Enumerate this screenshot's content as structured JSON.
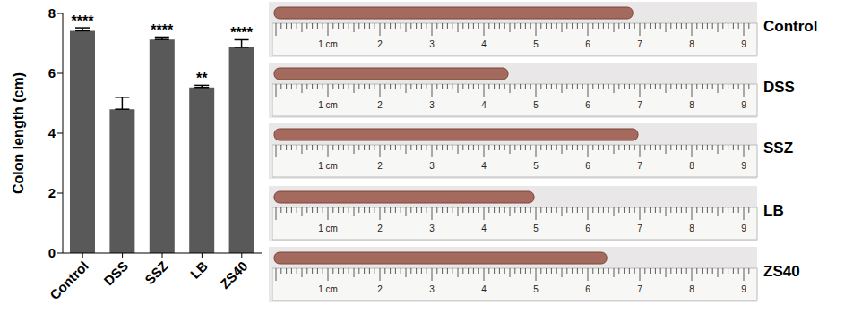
{
  "chart_data": {
    "type": "bar",
    "categories": [
      "Control",
      "DSS",
      "SSZ",
      "LB",
      "ZS40"
    ],
    "values": [
      7.42,
      4.8,
      7.13,
      5.53,
      6.87
    ],
    "error": [
      0.1,
      0.4,
      0.08,
      0.07,
      0.25
    ],
    "significance": [
      "****",
      null,
      "****",
      "**",
      "****"
    ],
    "color": "#595959",
    "y_label": "Colon length (cm)",
    "ylim": [
      0,
      8
    ],
    "yticks": [
      0,
      2,
      4,
      6,
      8
    ],
    "grid": false
  },
  "photo_panel": {
    "specimen_lengths_cm": [
      6.9,
      4.5,
      7.0,
      5.0,
      6.4
    ],
    "ruler_ticks": [
      {
        "value": 1,
        "label": "1 cm"
      },
      2,
      3,
      4,
      5,
      6,
      7,
      8,
      9
    ]
  }
}
